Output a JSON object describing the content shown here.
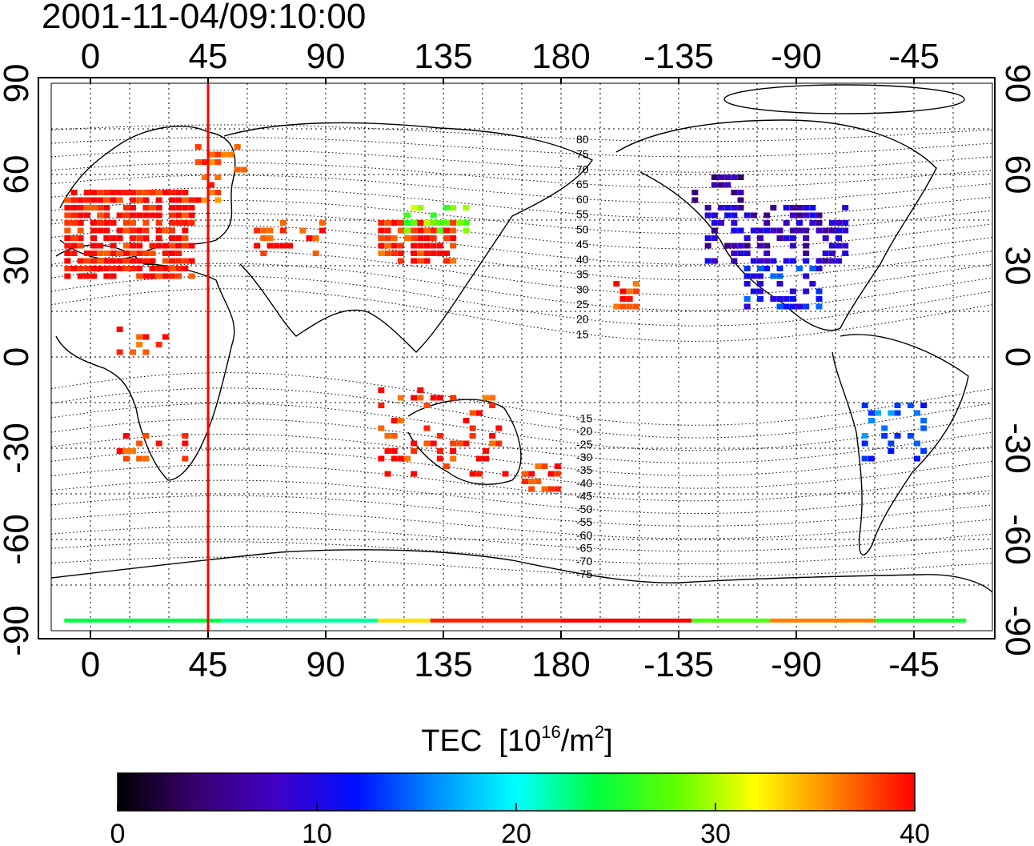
{
  "title": "2001-11-04/09:10:00",
  "map": {
    "lon_ticks": [
      0,
      45,
      90,
      135,
      180,
      -135,
      -90,
      -45
    ],
    "lat_ticks": [
      90,
      60,
      30,
      0,
      -30,
      -60,
      -90
    ],
    "magnetic_lat_labels_north": [
      80,
      75,
      70,
      65,
      60,
      55,
      50,
      45,
      40,
      35,
      30,
      25,
      20,
      15
    ],
    "magnetic_lat_labels_south": [
      -15,
      -20,
      -25,
      -30,
      -35,
      -40,
      -45,
      -50,
      -55,
      -60,
      -65,
      -70,
      -75
    ],
    "marker_longitude": 45,
    "marker_color": "#ff0000"
  },
  "colorbar": {
    "title_prefix": "TEC",
    "units_open": "[10",
    "units_exp": "16",
    "units_mid": "/m",
    "units_exp2": "2",
    "units_close": "]",
    "min": 0,
    "max": 40,
    "ticks": [
      0,
      10,
      20,
      30,
      40
    ],
    "colors": [
      "#000000",
      "#3a0070",
      "#4000c8",
      "#0010ff",
      "#0090ff",
      "#00ffff",
      "#00ff40",
      "#60ff00",
      "#ffff00",
      "#ff8000",
      "#ff0000"
    ]
  }
}
